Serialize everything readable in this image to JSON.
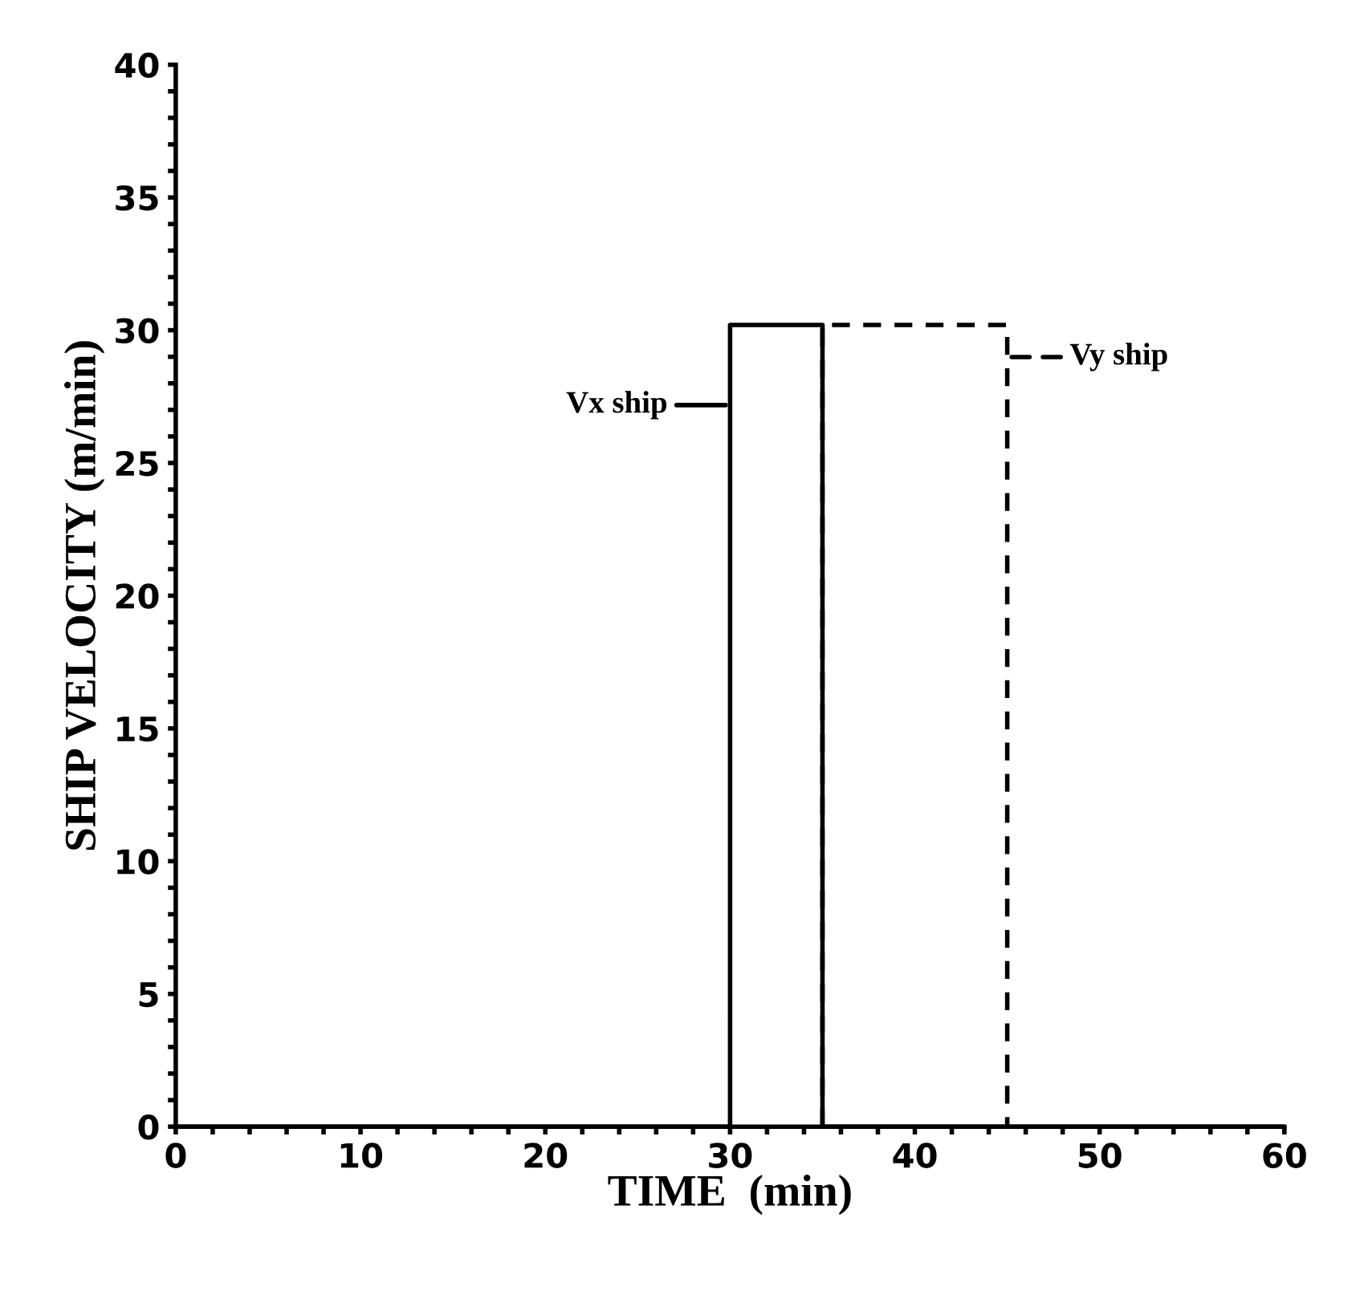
{
  "chart_data": {
    "type": "line",
    "xlabel": "TIME  (min)",
    "ylabel": "SHIP VELOCITY (m/min)",
    "xlim": [
      0,
      60
    ],
    "ylim": [
      0,
      40
    ],
    "xticks": [
      0,
      {
        "value": 2,
        "label": null
      },
      {
        "value": 4,
        "label": null
      },
      {
        "value": 6,
        "label": null
      },
      {
        "value": 8,
        "label": null
      },
      10,
      {
        "value": 12,
        "label": null
      },
      {
        "value": 14,
        "label": null
      },
      {
        "value": 16,
        "label": null
      },
      {
        "value": 18,
        "label": null
      },
      20,
      {
        "value": 22,
        "label": null
      },
      {
        "value": 24,
        "label": null
      },
      {
        "value": 26,
        "label": null
      },
      {
        "value": 28,
        "label": null
      },
      30,
      {
        "value": 32,
        "label": null
      },
      {
        "value": 34,
        "label": null
      },
      {
        "value": 36,
        "label": null
      },
      {
        "value": 38,
        "label": null
      },
      40,
      {
        "value": 42,
        "label": null
      },
      {
        "value": 44,
        "label": null
      },
      {
        "value": 46,
        "label": null
      },
      {
        "value": 48,
        "label": null
      },
      50,
      {
        "value": 52,
        "label": null
      },
      {
        "value": 54,
        "label": null
      },
      {
        "value": 56,
        "label": null
      },
      {
        "value": 58,
        "label": null
      },
      60
    ],
    "yticks": [
      0,
      {
        "value": 1,
        "label": null
      },
      {
        "value": 2,
        "label": null
      },
      {
        "value": 3,
        "label": null
      },
      {
        "value": 4,
        "label": null
      },
      5,
      {
        "value": 6,
        "label": null
      },
      {
        "value": 7,
        "label": null
      },
      {
        "value": 8,
        "label": null
      },
      {
        "value": 9,
        "label": null
      },
      10,
      {
        "value": 11,
        "label": null
      },
      {
        "value": 12,
        "label": null
      },
      {
        "value": 13,
        "label": null
      },
      {
        "value": 14,
        "label": null
      },
      15,
      {
        "value": 16,
        "label": null
      },
      {
        "value": 17,
        "label": null
      },
      {
        "value": 18,
        "label": null
      },
      {
        "value": 19,
        "label": null
      },
      20,
      {
        "value": 21,
        "label": null
      },
      {
        "value": 22,
        "label": null
      },
      {
        "value": 23,
        "label": null
      },
      {
        "value": 24,
        "label": null
      },
      25,
      {
        "value": 26,
        "label": null
      },
      {
        "value": 27,
        "label": null
      },
      {
        "value": 28,
        "label": null
      },
      {
        "value": 29,
        "label": null
      },
      30,
      {
        "value": 31,
        "label": null
      },
      {
        "value": 32,
        "label": null
      },
      {
        "value": 33,
        "label": null
      },
      {
        "value": 34,
        "label": null
      },
      35,
      {
        "value": 36,
        "label": null
      },
      {
        "value": 37,
        "label": null
      },
      {
        "value": 38,
        "label": null
      },
      {
        "value": 39,
        "label": null
      },
      40
    ],
    "grid": false,
    "marker": "none",
    "series": [
      {
        "name": "Vx ship",
        "color": "#000000",
        "line_style": "solid",
        "x": [
          0,
          30,
          30,
          35,
          35,
          60
        ],
        "values": [
          0,
          0,
          30.2,
          30.2,
          0,
          0
        ]
      },
      {
        "name": "Vy ship",
        "color": "#000000",
        "line_style": "dashed",
        "x": [
          35,
          35,
          45,
          45
        ],
        "values": [
          0,
          30.2,
          30.2,
          0
        ]
      }
    ]
  }
}
